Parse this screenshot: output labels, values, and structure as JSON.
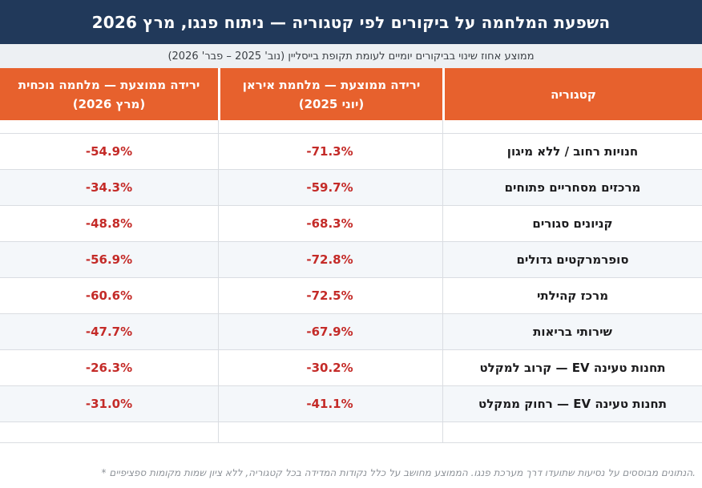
{
  "title": "השפעת המלחמה על ביקורים לפי קטגוריה — ניתוח פנגו, מרץ 2026",
  "subtitle": "ממוצע אחוז שינוי בביקורים יומיים לעומת תקופת בייסליין (נוב' 2025 – פבר' 2026)",
  "table": {
    "headers": {
      "category": "קטגוריה",
      "iran_line1": "ירידה ממוצעת — מלחמת איראן",
      "iran_line2": "(יוני 2025)",
      "current_line1": "ירידה ממוצעת — מלחמה נוכחית",
      "current_line2": "(מרץ 2026)"
    },
    "rows": [
      {
        "category": "חנויות רחוב / ללא מיגון",
        "iran": "-71.3%",
        "current": "-54.9%"
      },
      {
        "category": "מרכזים מסחריים פתוחים",
        "iran": "-59.7%",
        "current": "-34.3%"
      },
      {
        "category": "קניונים סגורים",
        "iran": "-68.3%",
        "current": "-48.8%"
      },
      {
        "category": "סופרמרקטים גדולים",
        "iran": "-72.8%",
        "current": "-56.9%"
      },
      {
        "category": "מרכז קהילתי",
        "iran": "-72.5%",
        "current": "-60.6%"
      },
      {
        "category": "שירותי בריאות",
        "iran": "-67.9%",
        "current": "-47.7%"
      },
      {
        "category": "תחנות טעינה EV — קרוב למקלט",
        "iran": "-30.2%",
        "current": "-26.3%"
      },
      {
        "category": "תחנות טעינה EV — רחוק ממקלט",
        "iran": "-41.1%",
        "current": "-31.0%"
      }
    ]
  },
  "footnote": "* הנתונים מבוססים על נסיעות שתועדו דרך מערכת פנגו. הממוצע מחושב על כלל נקודות המדידה בכל קטגוריה, ללא ציון שמות מקומות ספציפיים.",
  "colors": {
    "header_navy": "#21395a",
    "accent_orange": "#e7612d",
    "value_red": "#c42b28",
    "subtitle_bg": "#edf0f3",
    "alt_row_bg": "#f4f7fa",
    "border": "#dadde2"
  },
  "chart_data": {
    "type": "table",
    "title": "השפעת המלחמה על ביקורים לפי קטגוריה — ניתוח פנגו, מרץ 2026",
    "subtitle": "ממוצע אחוז שינוי בביקורים יומיים לעומת תקופת בייסליין (נוב' 2025 – פבר' 2026)",
    "categories": [
      "חנויות רחוב / ללא מיגון",
      "מרכזים מסחריים פתוחים",
      "קניונים סגורים",
      "סופרמרקטים גדולים",
      "מרכז קהילתי",
      "שירותי בריאות",
      "תחנות טעינה EV — קרוב למקלט",
      "תחנות טעינה EV — רחוק ממקלט"
    ],
    "series": [
      {
        "name": "ירידה ממוצעת — מלחמת איראן (יוני 2025)",
        "values": [
          -71.3,
          -59.7,
          -68.3,
          -72.8,
          -72.5,
          -67.9,
          -30.2,
          -41.1
        ]
      },
      {
        "name": "ירידה ממוצעת — מלחמה נוכחית (מרץ 2026)",
        "values": [
          -54.9,
          -34.3,
          -48.8,
          -56.9,
          -60.6,
          -47.7,
          -26.3,
          -31.0
        ]
      }
    ],
    "unit": "%",
    "footnote": "* הנתונים מבוססים על נסיעות שתועדו דרך מערכת פנגו. הממוצע מחושב על כלל נקודות המדידה בכל קטגוריה, ללא ציון שמות מקומות ספציפיים."
  }
}
